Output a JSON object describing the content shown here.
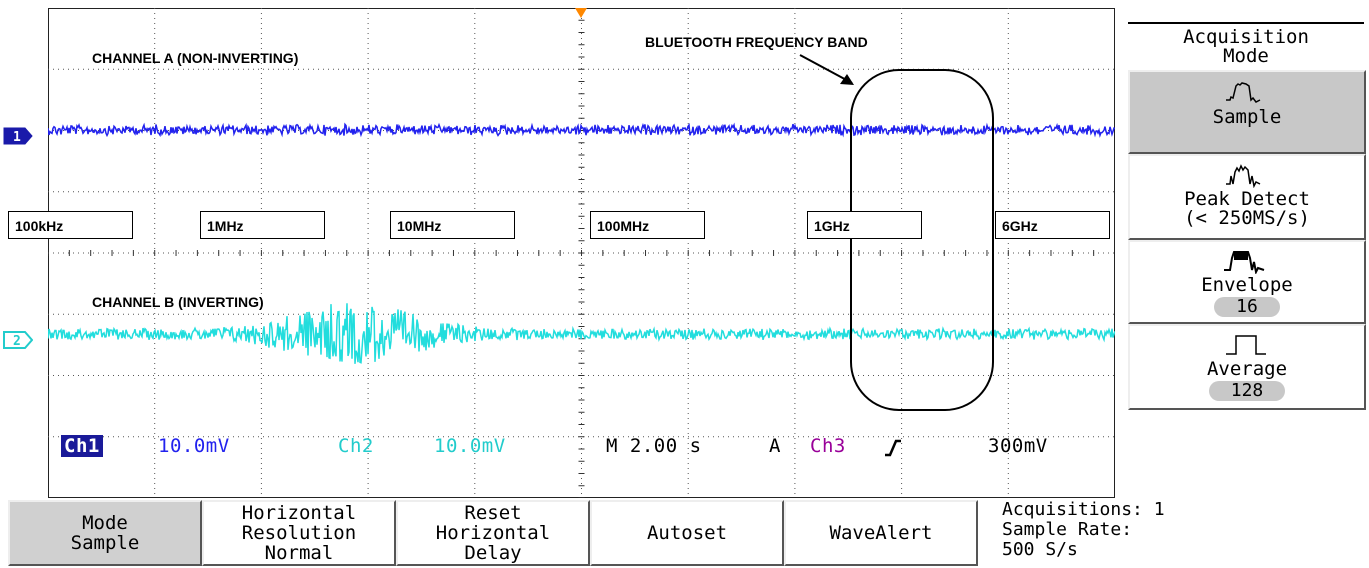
{
  "annotations": {
    "channel_a": "CHANNEL A (NON-INVERTING)",
    "channel_b": "CHANNEL B (INVERTING)",
    "bluetooth": "BLUETOOTH FREQUENCY BAND"
  },
  "freq_labels": [
    "100kHz",
    "1MHz",
    "10MHz",
    "100MHz",
    "1GHz",
    "6GHz"
  ],
  "markers": {
    "ch1": "1",
    "ch2": "2"
  },
  "readouts": {
    "ch1_label": "Ch1",
    "ch1_scale": "10.0mV",
    "ch2_label": "Ch2",
    "ch2_scale": "10.0mV",
    "timebase": "M 2.00 s",
    "trigger_mode": "A",
    "trigger_source": "Ch3",
    "trigger_level": "300mV"
  },
  "side_menu": {
    "title_line1": "Acquisition",
    "title_line2": "Mode",
    "sample": "Sample",
    "peak_line1": "Peak Detect",
    "peak_line2": "(< 250MS/s)",
    "envelope": "Envelope",
    "envelope_count": "16",
    "average": "Average",
    "average_count": "128"
  },
  "bottom_menu": {
    "mode_line1": "Mode",
    "mode_line2": "Sample",
    "hres_line1": "Horizontal",
    "hres_line2": "Resolution",
    "hres_line3": "Normal",
    "reset_line1": "Reset",
    "reset_line2": "Horizontal",
    "reset_line3": "Delay",
    "autoset": "Autoset",
    "wavealert": "WaveAlert"
  },
  "status": {
    "acquisitions": "Acquisitions: 1",
    "sample_rate_label": "Sample Rate:",
    "sample_rate_value": "500 S/s"
  },
  "colors": {
    "ch1": "#2222ee",
    "ch2": "#22dddd",
    "ch3": "#990099",
    "trigger_marker": "#ff8800",
    "grid": "#555555"
  }
}
